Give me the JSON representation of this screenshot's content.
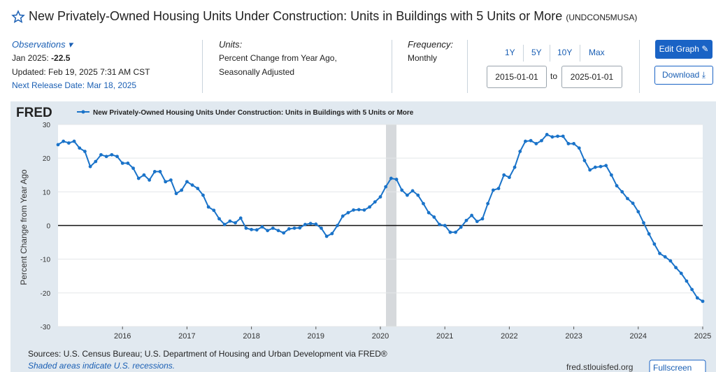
{
  "header": {
    "title": "New Privately-Owned Housing Units Under Construction: Units in Buildings with 5 Units or More",
    "series_id": "(UNDCON5MUSA)"
  },
  "observations": {
    "label": "Observations",
    "date": "Jan 2025:",
    "value": -22.5,
    "updated": "Updated: Feb 19, 2025 7:31 AM CST",
    "next_release": "Next Release Date: Mar 18, 2025"
  },
  "units": {
    "label": "Units:",
    "lines": [
      "Percent Change from Year Ago,",
      "Seasonally Adjusted"
    ]
  },
  "frequency": {
    "label": "Frequency:",
    "value": "Monthly"
  },
  "ranges": [
    "1Y",
    "5Y",
    "10Y",
    "Max"
  ],
  "date_range": {
    "start": "2015-01-01",
    "separator": "to",
    "end": "2025-01-01"
  },
  "buttons": {
    "edit": "Edit Graph",
    "download": "Download"
  },
  "logo": "FRED",
  "chart_data": {
    "type": "line",
    "y_label": "Percent Change from Year Ago",
    "categories": [
      null,
      null,
      null,
      null,
      null,
      null,
      null,
      null,
      null,
      null,
      null,
      null,
      "2016",
      null,
      null,
      null,
      null,
      null,
      null,
      null,
      null,
      null,
      null,
      null,
      "2017",
      null,
      null,
      null,
      null,
      null,
      null,
      null,
      null,
      null,
      null,
      null,
      "2018",
      null,
      null,
      null,
      null,
      null,
      null,
      null,
      null,
      null,
      null,
      null,
      "2019",
      null,
      null,
      null,
      null,
      null,
      null,
      null,
      null,
      null,
      null,
      null,
      "2020",
      null,
      null,
      null,
      null,
      null,
      null,
      null,
      null,
      null,
      null,
      null,
      "2021",
      null,
      null,
      null,
      null,
      null,
      null,
      null,
      null,
      null,
      null,
      null,
      "2022",
      null,
      null,
      null,
      null,
      null,
      null,
      null,
      null,
      null,
      null,
      null,
      "2023",
      null,
      null,
      null,
      null,
      null,
      null,
      null,
      null,
      null,
      null,
      null,
      "2024",
      null,
      null,
      null,
      null,
      null,
      null,
      null,
      null,
      null,
      null,
      null,
      "2025"
    ],
    "series": [
      {
        "name": "New Privately-Owned Housing Units Under Construction: Units in Buildings with 5 Units or More",
        "color": "#1a73c9",
        "values": [
          24,
          25,
          24.5,
          25,
          23,
          22,
          17.5,
          19,
          21,
          20.5,
          21,
          20.5,
          18.5,
          18.5,
          17,
          14,
          15,
          13.5,
          16,
          16,
          13,
          13.5,
          9.5,
          10.5,
          13,
          12,
          11,
          9,
          5.5,
          4.5,
          2,
          0.3,
          1.3,
          0.8,
          2.2,
          -0.8,
          -1.2,
          -1.3,
          -0.4,
          -1.5,
          -0.8,
          -1.5,
          -2.2,
          -1,
          -0.8,
          -0.7,
          0.3,
          0.6,
          0.4,
          -0.8,
          -3.2,
          -2.4,
          0,
          2.8,
          3.8,
          4.6,
          4.7,
          4.6,
          5.5,
          7,
          8.5,
          11.5,
          14,
          13.7,
          10.5,
          9,
          10.3,
          9,
          6.5,
          3.8,
          2.5,
          0.3,
          0,
          -2,
          -2,
          -0.5,
          1.5,
          3,
          1.2,
          2,
          6.5,
          10.5,
          11,
          15,
          14.3,
          17.3,
          22,
          25,
          25.2,
          24.3,
          25.2,
          27,
          26.3,
          26.5,
          26.5,
          24.3,
          24.3,
          23,
          19.3,
          16.5,
          17.3,
          17.5,
          17.8,
          15,
          11.8,
          10,
          8,
          6.6,
          4.1,
          0.8,
          -2.5,
          -5.5,
          -8.3,
          -9.3,
          -10.5,
          -12.5,
          -14.2,
          -16.5,
          -19,
          -21.5,
          -22.5
        ]
      }
    ],
    "ylim": [
      -30,
      30
    ],
    "yticks": [
      -30,
      -20,
      -10,
      0,
      10,
      20,
      30
    ],
    "grid": true
  },
  "footer": {
    "sources": "Sources: U.S. Census Bureau; U.S. Department of Housing and Urban Development via FRED®",
    "shading_note": "Shaded areas indicate U.S. recessions.",
    "site": "fred.stlouisfed.org",
    "fullscreen": "Fullscreen"
  }
}
